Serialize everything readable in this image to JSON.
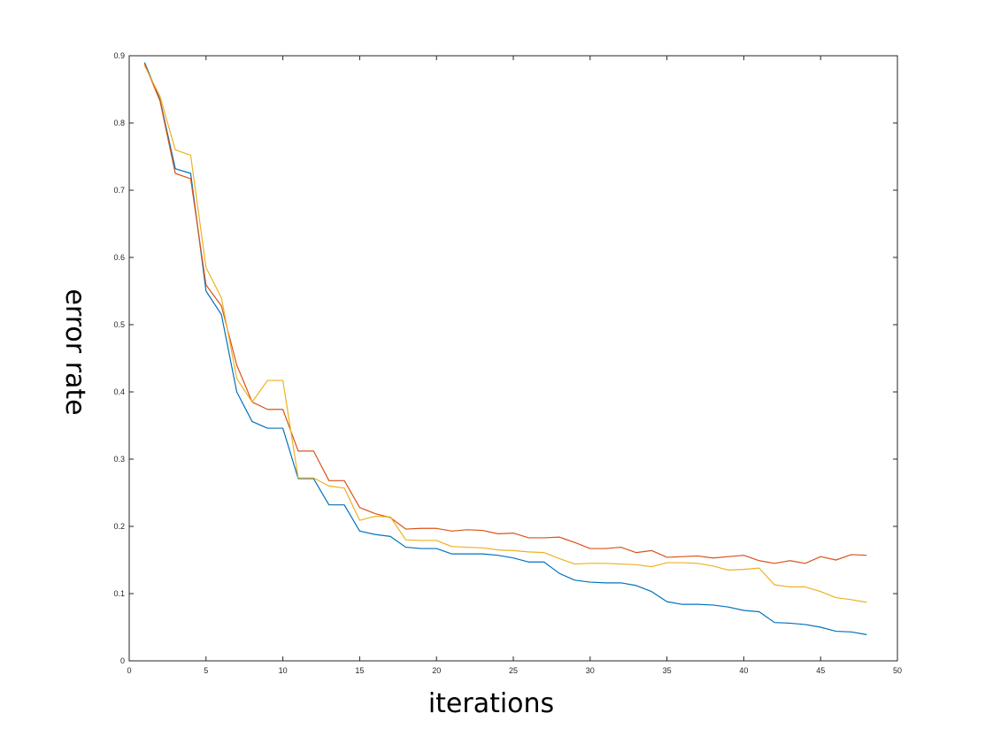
{
  "chart_data": {
    "type": "line",
    "title": "",
    "xlabel": "iterations",
    "ylabel": "error rate",
    "xlim": [
      0,
      50
    ],
    "ylim": [
      0,
      0.9
    ],
    "xticks": [
      "0",
      "5",
      "10",
      "15",
      "20",
      "25",
      "30",
      "35",
      "40",
      "45",
      "50"
    ],
    "yticks": [
      "0",
      "0.1",
      "0.2",
      "0.3",
      "0.4",
      "0.5",
      "0.6",
      "0.7",
      "0.8",
      "0.9"
    ],
    "grid": false,
    "legend": "none",
    "x": [
      1,
      2,
      3,
      4,
      5,
      6,
      7,
      8,
      9,
      10,
      11,
      12,
      13,
      14,
      15,
      16,
      17,
      18,
      19,
      20,
      21,
      22,
      23,
      24,
      25,
      26,
      27,
      28,
      29,
      30,
      31,
      32,
      33,
      34,
      35,
      36,
      37,
      38,
      39,
      40,
      41,
      42,
      43,
      44,
      45,
      46,
      47,
      48
    ],
    "series": [
      {
        "color": "#0072BD",
        "values": [
          0.89,
          0.835,
          0.732,
          0.725,
          0.55,
          0.515,
          0.4,
          0.356,
          0.346,
          0.346,
          0.271,
          0.271,
          0.232,
          0.232,
          0.193,
          0.188,
          0.185,
          0.169,
          0.167,
          0.167,
          0.159,
          0.159,
          0.159,
          0.157,
          0.153,
          0.147,
          0.147,
          0.13,
          0.12,
          0.117,
          0.116,
          0.116,
          0.112,
          0.103,
          0.088,
          0.084,
          0.084,
          0.083,
          0.08,
          0.075,
          0.073,
          0.057,
          0.056,
          0.054,
          0.05,
          0.044,
          0.043,
          0.039
        ]
      },
      {
        "color": "#D95319",
        "values": [
          0.888,
          0.833,
          0.725,
          0.717,
          0.559,
          0.528,
          0.44,
          0.385,
          0.374,
          0.374,
          0.312,
          0.312,
          0.268,
          0.268,
          0.228,
          0.219,
          0.213,
          0.196,
          0.197,
          0.197,
          0.193,
          0.195,
          0.194,
          0.189,
          0.19,
          0.183,
          0.183,
          0.184,
          0.176,
          0.167,
          0.167,
          0.169,
          0.161,
          0.164,
          0.154,
          0.155,
          0.156,
          0.153,
          0.155,
          0.157,
          0.149,
          0.145,
          0.149,
          0.145,
          0.155,
          0.15,
          0.158,
          0.157
        ]
      },
      {
        "color": "#EDB120",
        "values": [
          0.885,
          0.84,
          0.76,
          0.752,
          0.585,
          0.54,
          0.42,
          0.385,
          0.417,
          0.417,
          0.272,
          0.272,
          0.26,
          0.257,
          0.209,
          0.215,
          0.214,
          0.18,
          0.179,
          0.179,
          0.17,
          0.169,
          0.168,
          0.165,
          0.164,
          0.162,
          0.161,
          0.152,
          0.144,
          0.145,
          0.145,
          0.144,
          0.143,
          0.14,
          0.146,
          0.146,
          0.145,
          0.141,
          0.135,
          0.136,
          0.138,
          0.113,
          0.11,
          0.11,
          0.103,
          0.094,
          0.091,
          0.087
        ]
      }
    ]
  }
}
